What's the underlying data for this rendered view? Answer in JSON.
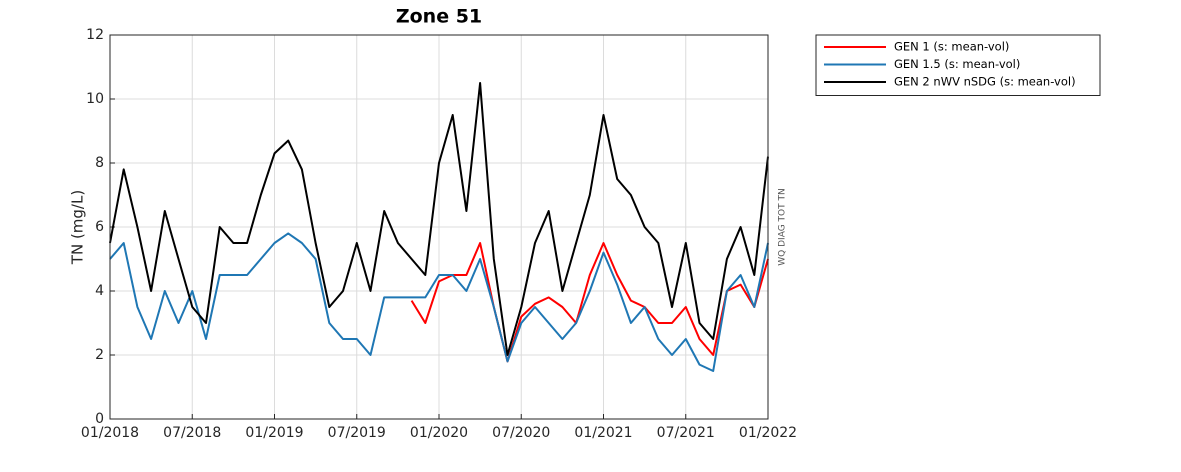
{
  "chart_data": {
    "type": "line",
    "title": "Zone 51",
    "ylabel": "TN (mg/L)",
    "right_label": "WQ DIAG TOT TN",
    "x": [
      "2018-01",
      "2018-02",
      "2018-03",
      "2018-04",
      "2018-05",
      "2018-06",
      "2018-07",
      "2018-08",
      "2018-09",
      "2018-10",
      "2018-11",
      "2018-12",
      "2019-01",
      "2019-02",
      "2019-03",
      "2019-04",
      "2019-05",
      "2019-06",
      "2019-07",
      "2019-08",
      "2019-09",
      "2019-10",
      "2019-11",
      "2019-12",
      "2020-01",
      "2020-02",
      "2020-03",
      "2020-04",
      "2020-05",
      "2020-06",
      "2020-07",
      "2020-08",
      "2020-09",
      "2020-10",
      "2020-11",
      "2020-12",
      "2021-01",
      "2021-02",
      "2021-03",
      "2021-04",
      "2021-05",
      "2021-06",
      "2021-07",
      "2021-08",
      "2021-09",
      "2021-10",
      "2021-11",
      "2021-12",
      "2022-01"
    ],
    "series": [
      {
        "name": "GEN 1 (s: mean-vol)",
        "color": "#ff0000",
        "values": [
          null,
          null,
          null,
          null,
          null,
          null,
          null,
          null,
          null,
          null,
          null,
          null,
          null,
          null,
          null,
          null,
          null,
          null,
          null,
          null,
          null,
          null,
          3.7,
          3.0,
          4.3,
          4.5,
          4.5,
          5.5,
          3.5,
          1.8,
          3.2,
          3.6,
          3.8,
          3.5,
          3.0,
          4.5,
          5.5,
          4.5,
          3.7,
          3.5,
          3.0,
          3.0,
          3.5,
          2.5,
          2.0,
          4.0,
          4.2,
          3.5,
          5.0
        ]
      },
      {
        "name": "GEN 1.5 (s: mean-vol)",
        "color": "#1f77b4",
        "values": [
          5.0,
          5.5,
          3.5,
          2.5,
          4.0,
          3.0,
          4.0,
          2.5,
          4.5,
          4.5,
          4.5,
          5.0,
          5.5,
          5.8,
          5.5,
          5.0,
          3.0,
          2.5,
          2.5,
          2.0,
          3.8,
          3.8,
          3.8,
          3.8,
          4.5,
          4.5,
          4.0,
          5.0,
          3.5,
          1.8,
          3.0,
          3.5,
          3.0,
          2.5,
          3.0,
          4.0,
          5.2,
          4.2,
          3.0,
          3.5,
          2.5,
          2.0,
          2.5,
          1.7,
          1.5,
          4.0,
          4.5,
          3.5,
          5.5
        ]
      },
      {
        "name": "GEN 2 nWV nSDG (s: mean-vol)",
        "color": "#000000",
        "values": [
          5.5,
          7.8,
          6.0,
          4.0,
          6.5,
          5.0,
          3.5,
          3.0,
          6.0,
          5.5,
          5.5,
          7.0,
          8.3,
          8.7,
          7.8,
          5.5,
          3.5,
          4.0,
          5.5,
          4.0,
          6.5,
          5.5,
          5.0,
          4.5,
          8.0,
          9.5,
          6.5,
          10.5,
          5.0,
          2.0,
          3.5,
          5.5,
          6.5,
          4.0,
          5.5,
          7.0,
          9.5,
          7.5,
          7.0,
          6.0,
          5.5,
          3.5,
          5.5,
          3.0,
          2.5,
          5.0,
          6.0,
          4.5,
          8.2
        ]
      }
    ],
    "xlim": [
      "2018-01",
      "2022-01"
    ],
    "xticks": [
      {
        "value": "2018-01",
        "label": "01/2018"
      },
      {
        "value": "2018-07",
        "label": "07/2018"
      },
      {
        "value": "2019-01",
        "label": "01/2019"
      },
      {
        "value": "2019-07",
        "label": "07/2019"
      },
      {
        "value": "2020-01",
        "label": "01/2020"
      },
      {
        "value": "2020-07",
        "label": "07/2020"
      },
      {
        "value": "2021-01",
        "label": "01/2021"
      },
      {
        "value": "2021-07",
        "label": "07/2021"
      },
      {
        "value": "2022-01",
        "label": "01/2022"
      }
    ],
    "ylim": [
      0,
      12
    ],
    "yticks": [
      0,
      2,
      4,
      6,
      8,
      10,
      12
    ],
    "grid": true,
    "legend": "northeastoutside"
  }
}
